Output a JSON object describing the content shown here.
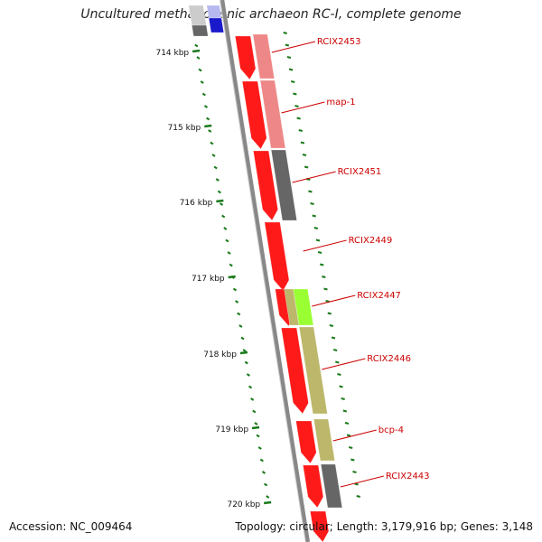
{
  "title": "Uncultured methanogenic archaeon RC-I, complete genome",
  "accession": "Accession: NC_009464",
  "summary": "Topology: circular; Length: 3,179,916 bp; Genes: 3,148",
  "ticks": [
    "714 kbp",
    "715 kbp",
    "716 kbp",
    "717 kbp",
    "718 kbp",
    "719 kbp",
    "720 kbp"
  ],
  "genes": [
    {
      "label": "RCIX2453",
      "color": "#ee8888"
    },
    {
      "label": "map-1",
      "color": "#ee8888"
    },
    {
      "label": "RCIX2451",
      "color": "#666666"
    },
    {
      "label": "RCIX2449",
      "color": "#ff1a1a"
    },
    {
      "label": "RCIX2447",
      "color": "#99ff33"
    },
    {
      "label": "RCIX2446",
      "color": "#bdb76b"
    },
    {
      "label": "bcp-4",
      "color": "#bdb76b"
    },
    {
      "label": "RCIX2443",
      "color": "#666666"
    }
  ],
  "colors": {
    "cds": "#ff1a1a",
    "tick": "#1a7a1a",
    "backbone": "#888888",
    "label": "#cc0000",
    "blue_gene": "#1a1acc",
    "gray_gene": "#666666"
  }
}
